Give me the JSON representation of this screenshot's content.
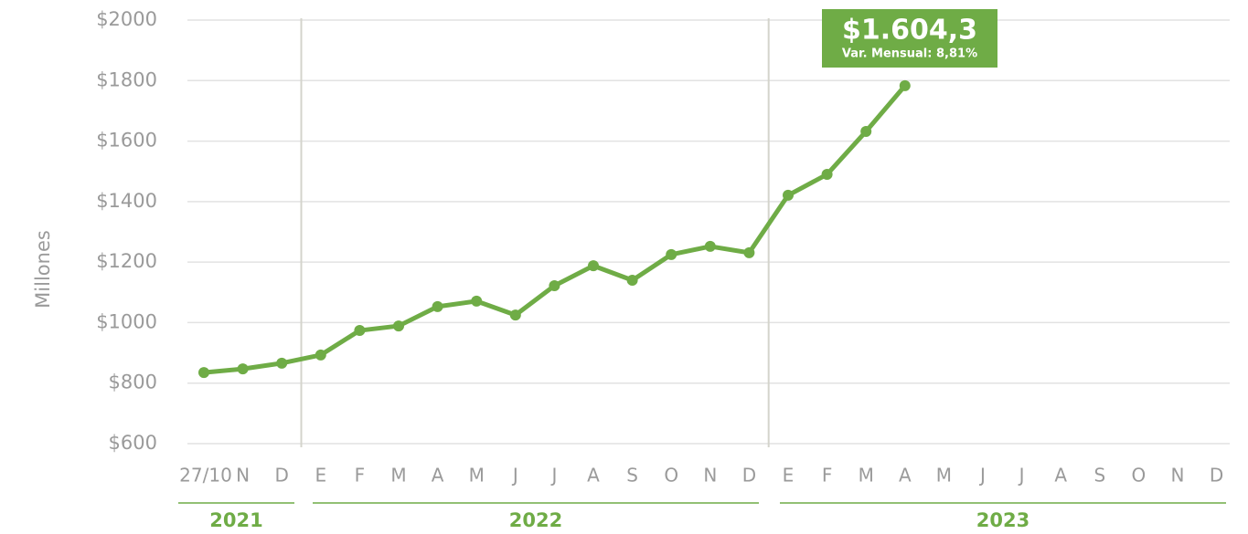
{
  "chart_data": {
    "type": "line",
    "y_axis_label": "Millones",
    "categories": [
      "27/10",
      "N",
      "D",
      "E",
      "F",
      "M",
      "A",
      "M",
      "J",
      "J",
      "A",
      "S",
      "O",
      "N",
      "D",
      "E",
      "F",
      "M",
      "A",
      "M",
      "J",
      "J",
      "A",
      "S",
      "O",
      "N",
      "D"
    ],
    "years": [
      "2021",
      "2022",
      "2023"
    ],
    "series": [
      {
        "name": "Millones",
        "color": "#6fac46",
        "values": [
          835,
          847,
          866,
          893,
          974,
          989,
          1053,
          1071,
          1025,
          1122,
          1188,
          1140,
          1225,
          1252,
          1231,
          1421,
          1490,
          1632,
          1783,
          null,
          null,
          null,
          null,
          null,
          null,
          null,
          null
        ]
      }
    ],
    "ylim": [
      600,
      2000
    ],
    "yticks": [
      {
        "value": 600,
        "label": "$600"
      },
      {
        "value": 800,
        "label": "$800"
      },
      {
        "value": 1000,
        "label": "$1000"
      },
      {
        "value": 1200,
        "label": "$1200"
      },
      {
        "value": 1400,
        "label": "$1400"
      },
      {
        "value": 1600,
        "label": "$1600"
      },
      {
        "value": 1800,
        "label": "$1800"
      },
      {
        "value": 2000,
        "label": "$2000"
      }
    ],
    "grid": true,
    "annotation": {
      "title": "$1.604,3",
      "subtitle": "Var. Mensual: 8,81%"
    }
  }
}
